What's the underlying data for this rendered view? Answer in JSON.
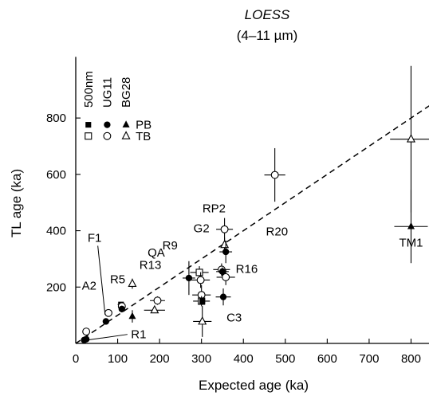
{
  "chart_data": {
    "type": "scatter",
    "title": "LOESS",
    "subtitle": "(4–11 µm)",
    "xlabel": "Expected age (ka)",
    "ylabel": "TL age (ka)",
    "xlim": [
      0,
      860
    ],
    "ylim": [
      0,
      1000
    ],
    "xticks": [
      0,
      100,
      200,
      300,
      400,
      500,
      600,
      700,
      800
    ],
    "yticks": [
      200,
      400,
      600,
      800
    ],
    "reference_line": {
      "style": "dashed",
      "from": [
        0,
        0
      ],
      "to": [
        860,
        860
      ]
    },
    "legend": {
      "filters": [
        "500nm",
        "UG11",
        "BG28"
      ],
      "rows": [
        {
          "label": "PB",
          "markers": [
            "filled-square",
            "filled-circle",
            "filled-triangle"
          ]
        },
        {
          "label": "TB",
          "markers": [
            "open-square",
            "open-circle",
            "open-triangle"
          ]
        }
      ]
    },
    "points": [
      {
        "x": 20,
        "y": 12,
        "m": "filled-circle",
        "xe": 0,
        "ye": 0
      },
      {
        "x": 25,
        "y": 15,
        "m": "filled-circle",
        "xe": 0,
        "ye": 0
      },
      {
        "x": 25,
        "y": 42,
        "m": "open-circle",
        "xe": 0,
        "ye": 0
      },
      {
        "x": 72,
        "y": 78,
        "m": "filled-circle",
        "xe": 0,
        "ye": 0
      },
      {
        "x": 78,
        "y": 108,
        "m": "open-circle",
        "xe": 5,
        "ye": 10
      },
      {
        "x": 108,
        "y": 138,
        "m": "filled-square",
        "xe": 8,
        "ye": 8
      },
      {
        "x": 110,
        "y": 132,
        "m": "open-circle",
        "xe": 6,
        "ye": 6
      },
      {
        "x": 110,
        "y": 122,
        "m": "filled-circle",
        "xe": 6,
        "ye": 12
      },
      {
        "x": 135,
        "y": 96,
        "m": "filled-triangle",
        "xe": 0,
        "ye": 22
      },
      {
        "x": 135,
        "y": 212,
        "m": "open-triangle",
        "xe": 0,
        "ye": 18
      },
      {
        "x": 188,
        "y": 118,
        "m": "open-triangle",
        "xe": 25,
        "ye": 0
      },
      {
        "x": 195,
        "y": 152,
        "m": "open-circle",
        "xe": 18,
        "ye": 15
      },
      {
        "x": 270,
        "y": 232,
        "m": "filled-circle",
        "xe": 15,
        "ye": 60
      },
      {
        "x": 295,
        "y": 252,
        "m": "open-square",
        "xe": 22,
        "ye": 22
      },
      {
        "x": 298,
        "y": 225,
        "m": "open-circle",
        "xe": 22,
        "ye": 28
      },
      {
        "x": 300,
        "y": 172,
        "m": "open-circle",
        "xe": 22,
        "ye": 35
      },
      {
        "x": 300,
        "y": 150,
        "m": "open-square",
        "xe": 20,
        "ye": 18
      },
      {
        "x": 302,
        "y": 150,
        "m": "filled-square",
        "xe": 0,
        "ye": 0
      },
      {
        "x": 302,
        "y": 78,
        "m": "open-triangle",
        "xe": 22,
        "ye": 55
      },
      {
        "x": 348,
        "y": 262,
        "m": "open-circle",
        "xe": 20,
        "ye": 22
      },
      {
        "x": 350,
        "y": 255,
        "m": "filled-circle",
        "xe": 15,
        "ye": 15
      },
      {
        "x": 352,
        "y": 165,
        "m": "filled-circle",
        "xe": 18,
        "ye": 30
      },
      {
        "x": 355,
        "y": 405,
        "m": "open-circle",
        "xe": 20,
        "ye": 40
      },
      {
        "x": 355,
        "y": 350,
        "m": "open-triangle",
        "xe": 0,
        "ye": 25
      },
      {
        "x": 358,
        "y": 325,
        "m": "filled-circle",
        "xe": 15,
        "ye": 40
      },
      {
        "x": 358,
        "y": 235,
        "m": "open-circle",
        "xe": 22,
        "ye": 28
      },
      {
        "x": 475,
        "y": 598,
        "m": "open-circle",
        "xe": 25,
        "ye": 95
      },
      {
        "x": 800,
        "y": 725,
        "m": "open-triangle",
        "xe": 50,
        "ye": 260
      },
      {
        "x": 800,
        "y": 415,
        "m": "filled-triangle",
        "xe": 40,
        "ye": 130
      }
    ],
    "annotations": [
      {
        "text": "A2",
        "x": 32,
        "y": 205,
        "anchor": "middle"
      },
      {
        "text": "F1",
        "x": 45,
        "y": 375,
        "anchor": "middle",
        "leader_to": [
          70,
          102
        ]
      },
      {
        "text": "R1",
        "x": 150,
        "y": 32,
        "anchor": "middle",
        "leader_to": [
          28,
          12
        ]
      },
      {
        "text": "R5",
        "x": 100,
        "y": 228,
        "anchor": "middle"
      },
      {
        "text": "QA",
        "x": 192,
        "y": 322,
        "anchor": "middle"
      },
      {
        "text": "R13",
        "x": 178,
        "y": 278,
        "anchor": "middle"
      },
      {
        "text": "R9",
        "x": 225,
        "y": 348,
        "anchor": "middle"
      },
      {
        "text": "G2",
        "x": 300,
        "y": 408,
        "anchor": "middle"
      },
      {
        "text": "RP2",
        "x": 330,
        "y": 480,
        "anchor": "middle"
      },
      {
        "text": "R16",
        "x": 408,
        "y": 265,
        "anchor": "middle"
      },
      {
        "text": "C3",
        "x": 378,
        "y": 92,
        "anchor": "middle"
      },
      {
        "text": "R20",
        "x": 480,
        "y": 398,
        "anchor": "middle"
      },
      {
        "text": "TM1",
        "x": 800,
        "y": 358,
        "anchor": "middle"
      }
    ]
  }
}
